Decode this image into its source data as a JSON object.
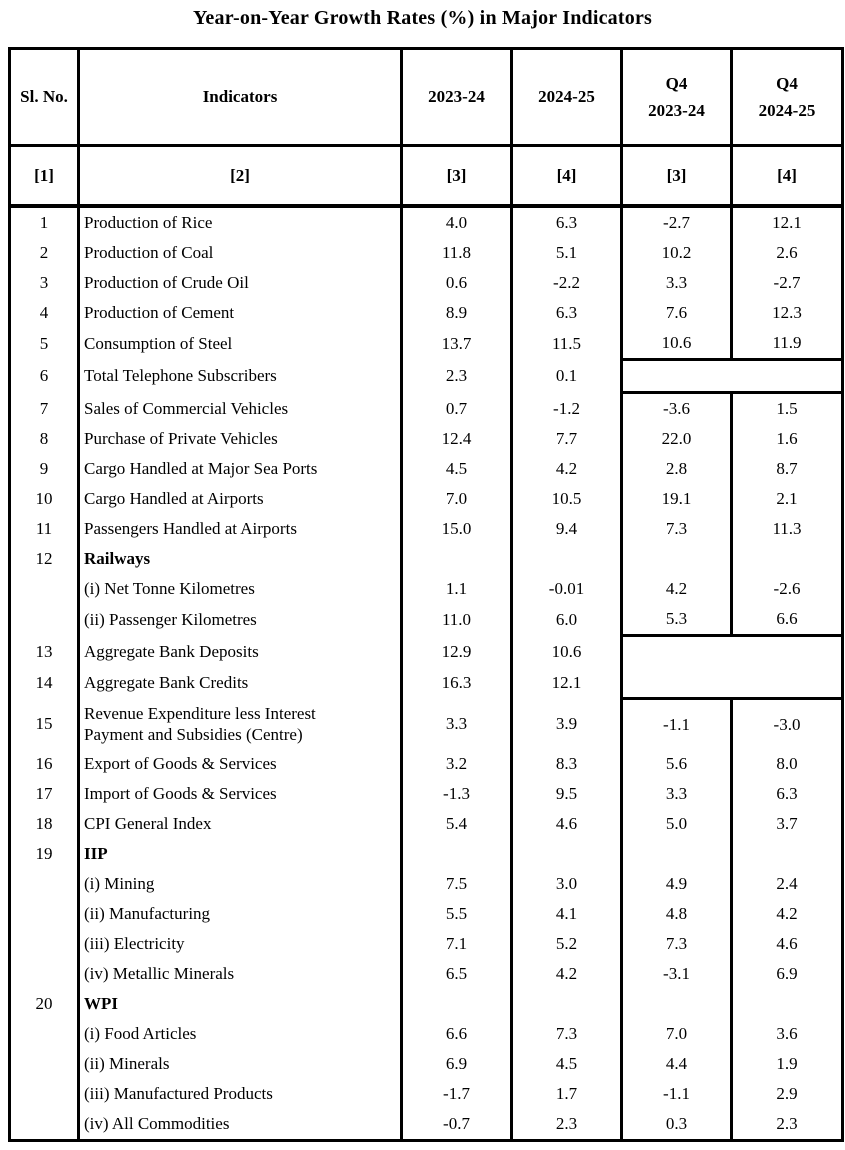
{
  "title": "Year-on-Year Growth Rates (%) in Major Indicators",
  "table": {
    "header": {
      "sl_no": "Sl. No.",
      "indicators": "Indicators",
      "fy_2023_24": "2023-24",
      "fy_2024_25": "2024-25",
      "q4": "Q4",
      "q4_fy_2023_24": "2023-24",
      "q4_fy_2024_25": "2024-25",
      "refs": [
        "[1]",
        "[2]",
        "[3]",
        "[4]",
        "[3]",
        "[4]"
      ]
    },
    "rows": [
      {
        "sl": "1",
        "indicator": "Production of Rice",
        "v_2023_24": "4.0",
        "v_2024_25": "6.3",
        "q4_2023_24": "-2.7",
        "q4_2024_25": "12.1"
      },
      {
        "sl": "2",
        "indicator": "Production of Coal",
        "v_2023_24": "11.8",
        "v_2024_25": "5.1",
        "q4_2023_24": "10.2",
        "q4_2024_25": "2.6"
      },
      {
        "sl": "3",
        "indicator": "Production of Crude Oil",
        "v_2023_24": "0.6",
        "v_2024_25": "-2.2",
        "q4_2023_24": "3.3",
        "q4_2024_25": "-2.7"
      },
      {
        "sl": "4",
        "indicator": "Production of Cement",
        "v_2023_24": "8.9",
        "v_2024_25": "6.3",
        "q4_2023_24": "7.6",
        "q4_2024_25": "12.3"
      },
      {
        "sl": "5",
        "indicator": "Consumption of Steel",
        "v_2023_24": "13.7",
        "v_2024_25": "11.5",
        "q4_2023_24": "10.6",
        "q4_2024_25": "11.9"
      },
      {
        "sl": "6",
        "indicator": "Total Telephone Subscribers",
        "v_2023_24": "2.3",
        "v_2024_25": "0.1",
        "q4_gap": "both"
      },
      {
        "sl": "7",
        "indicator": "Sales of Commercial Vehicles",
        "v_2023_24": "0.7",
        "v_2024_25": "-1.2",
        "q4_2023_24": "-3.6",
        "q4_2024_25": "1.5"
      },
      {
        "sl": "8",
        "indicator": "Purchase of Private Vehicles",
        "v_2023_24": "12.4",
        "v_2024_25": "7.7",
        "q4_2023_24": "22.0",
        "q4_2024_25": "1.6"
      },
      {
        "sl": "9",
        "indicator": "Cargo Handled at Major Sea Ports",
        "v_2023_24": "4.5",
        "v_2024_25": "4.2",
        "q4_2023_24": "2.8",
        "q4_2024_25": "8.7"
      },
      {
        "sl": "10",
        "indicator": "Cargo Handled at Airports",
        "v_2023_24": "7.0",
        "v_2024_25": "10.5",
        "q4_2023_24": "19.1",
        "q4_2024_25": "2.1"
      },
      {
        "sl": "11",
        "indicator": "Passengers Handled at Airports",
        "v_2023_24": "15.0",
        "v_2024_25": "9.4",
        "q4_2023_24": "7.3",
        "q4_2024_25": "11.3"
      },
      {
        "sl": "12",
        "indicator": "Railways",
        "bold": true,
        "v_2023_24": "",
        "v_2024_25": "",
        "q4_2023_24": "",
        "q4_2024_25": ""
      },
      {
        "sl": "",
        "indicator": "(i) Net Tonne Kilometres",
        "v_2023_24": "1.1",
        "v_2024_25": "-0.01",
        "q4_2023_24": "4.2",
        "q4_2024_25": "-2.6"
      },
      {
        "sl": "",
        "indicator": "(ii) Passenger Kilometres",
        "v_2023_24": "11.0",
        "v_2024_25": "6.0",
        "q4_2023_24": "5.3",
        "q4_2024_25": "6.6"
      },
      {
        "sl": "13",
        "indicator": "Aggregate Bank Deposits",
        "v_2023_24": "12.9",
        "v_2024_25": "10.6",
        "q4_gap": "top"
      },
      {
        "sl": "14",
        "indicator": "Aggregate Bank Credits",
        "v_2023_24": "16.3",
        "v_2024_25": "12.1",
        "q4_gap": "bottom"
      },
      {
        "sl": "15",
        "indicator": "Revenue Expenditure less Interest Payment and Subsidies (Centre)",
        "wrap": true,
        "v_2023_24": "3.3",
        "v_2024_25": "3.9",
        "q4_2023_24": "-1.1",
        "q4_2024_25": "-3.0"
      },
      {
        "sl": "16",
        "indicator": "Export of Goods & Services",
        "v_2023_24": "3.2",
        "v_2024_25": "8.3",
        "q4_2023_24": "5.6",
        "q4_2024_25": "8.0"
      },
      {
        "sl": "17",
        "indicator": "Import of Goods & Services",
        "v_2023_24": "-1.3",
        "v_2024_25": "9.5",
        "q4_2023_24": "3.3",
        "q4_2024_25": "6.3"
      },
      {
        "sl": "18",
        "indicator": "CPI General Index",
        "v_2023_24": "5.4",
        "v_2024_25": "4.6",
        "q4_2023_24": "5.0",
        "q4_2024_25": "3.7"
      },
      {
        "sl": "19",
        "indicator": "IIP",
        "bold": true,
        "v_2023_24": "",
        "v_2024_25": "",
        "q4_2023_24": "",
        "q4_2024_25": ""
      },
      {
        "sl": "",
        "indicator": "(i) Mining",
        "v_2023_24": "7.5",
        "v_2024_25": "3.0",
        "q4_2023_24": "4.9",
        "q4_2024_25": "2.4"
      },
      {
        "sl": "",
        "indicator": "(ii) Manufacturing",
        "v_2023_24": "5.5",
        "v_2024_25": "4.1",
        "q4_2023_24": "4.8",
        "q4_2024_25": "4.2"
      },
      {
        "sl": "",
        "indicator": "(iii) Electricity",
        "v_2023_24": "7.1",
        "v_2024_25": "5.2",
        "q4_2023_24": "7.3",
        "q4_2024_25": "4.6"
      },
      {
        "sl": "",
        "indicator": "(iv) Metallic Minerals",
        "v_2023_24": "6.5",
        "v_2024_25": "4.2",
        "q4_2023_24": "-3.1",
        "q4_2024_25": "6.9"
      },
      {
        "sl": "20",
        "indicator": "WPI",
        "bold": true,
        "v_2023_24": "",
        "v_2024_25": "",
        "q4_2023_24": "",
        "q4_2024_25": ""
      },
      {
        "sl": "",
        "indicator": "(i) Food Articles",
        "v_2023_24": "6.6",
        "v_2024_25": "7.3",
        "q4_2023_24": "7.0",
        "q4_2024_25": "3.6"
      },
      {
        "sl": "",
        "indicator": "(ii) Minerals",
        "v_2023_24": "6.9",
        "v_2024_25": "4.5",
        "q4_2023_24": "4.4",
        "q4_2024_25": "1.9"
      },
      {
        "sl": "",
        "indicator": "(iii) Manufactured Products",
        "v_2023_24": "-1.7",
        "v_2024_25": "1.7",
        "q4_2023_24": "-1.1",
        "q4_2024_25": "2.9"
      },
      {
        "sl": "",
        "indicator": "(iv) All Commodities",
        "v_2023_24": "-0.7",
        "v_2024_25": "2.3",
        "q4_2023_24": "0.3",
        "q4_2024_25": "2.3"
      }
    ]
  }
}
